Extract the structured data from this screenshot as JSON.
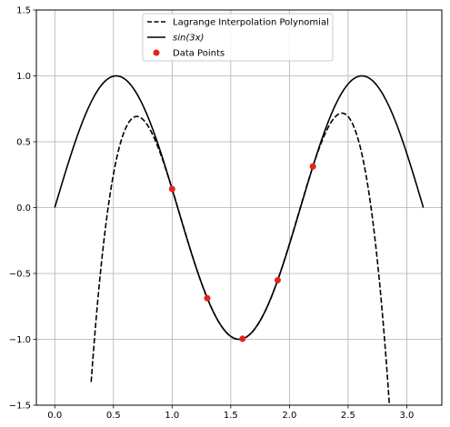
{
  "chart_data": {
    "type": "line",
    "title": "",
    "xlabel": "",
    "ylabel": "",
    "xlim": [
      -0.157,
      3.299
    ],
    "ylim": [
      -1.5,
      1.5
    ],
    "xticks": [
      0.0,
      0.5,
      1.0,
      1.5,
      2.0,
      2.5,
      3.0
    ],
    "xtick_labels": [
      "0.0",
      "0.5",
      "1.0",
      "1.5",
      "2.0",
      "2.5",
      "3.0"
    ],
    "yticks": [
      -1.5,
      -1.0,
      -0.5,
      0.0,
      0.5,
      1.0,
      1.5
    ],
    "ytick_labels": [
      "−1.5",
      "−1.0",
      "−0.5",
      "0.0",
      "0.5",
      "1.0",
      "1.5"
    ],
    "grid": true,
    "legend_position": "top-center",
    "series": [
      {
        "name": "Lagrange Interpolation Polynomial",
        "style": "dashed",
        "color": "#000000",
        "x": [
          0.31,
          0.4,
          0.5,
          0.6,
          0.7,
          0.8,
          0.9,
          1.0,
          1.1,
          1.2,
          1.3,
          1.4,
          1.5,
          1.6,
          1.7,
          1.8,
          1.9,
          2.0,
          2.1,
          2.2,
          2.3,
          2.4,
          2.45,
          2.5,
          2.6,
          2.7,
          2.8,
          2.86
        ],
        "y": [
          -1.5,
          -0.65,
          0.12,
          0.55,
          0.68,
          0.64,
          0.46,
          0.14,
          -0.25,
          -0.57,
          -0.69,
          -0.87,
          -0.98,
          -1.0,
          -0.93,
          -0.78,
          -0.55,
          -0.28,
          0.03,
          0.31,
          0.56,
          0.71,
          0.71,
          0.67,
          0.42,
          -0.05,
          -0.89,
          -1.5
        ]
      },
      {
        "name": "$sin(3x)$",
        "style": "solid",
        "color": "#000000",
        "function": "sin(3x)",
        "x_range": [
          0.0,
          3.1416
        ]
      }
    ],
    "scatter": {
      "name": "Data Points",
      "color": "#e8211a",
      "x": [
        1.0,
        1.3,
        1.6,
        1.9,
        2.2
      ],
      "y": [
        0.141,
        -0.688,
        -0.996,
        -0.551,
        0.312
      ]
    },
    "legend": [
      {
        "label": "Lagrange Interpolation Polynomial",
        "kind": "dashed-line",
        "color": "#000000"
      },
      {
        "label": "sin(3x)",
        "kind": "solid-line",
        "color": "#000000"
      },
      {
        "label": "Data Points",
        "kind": "dot",
        "color": "#e8211a"
      }
    ]
  }
}
